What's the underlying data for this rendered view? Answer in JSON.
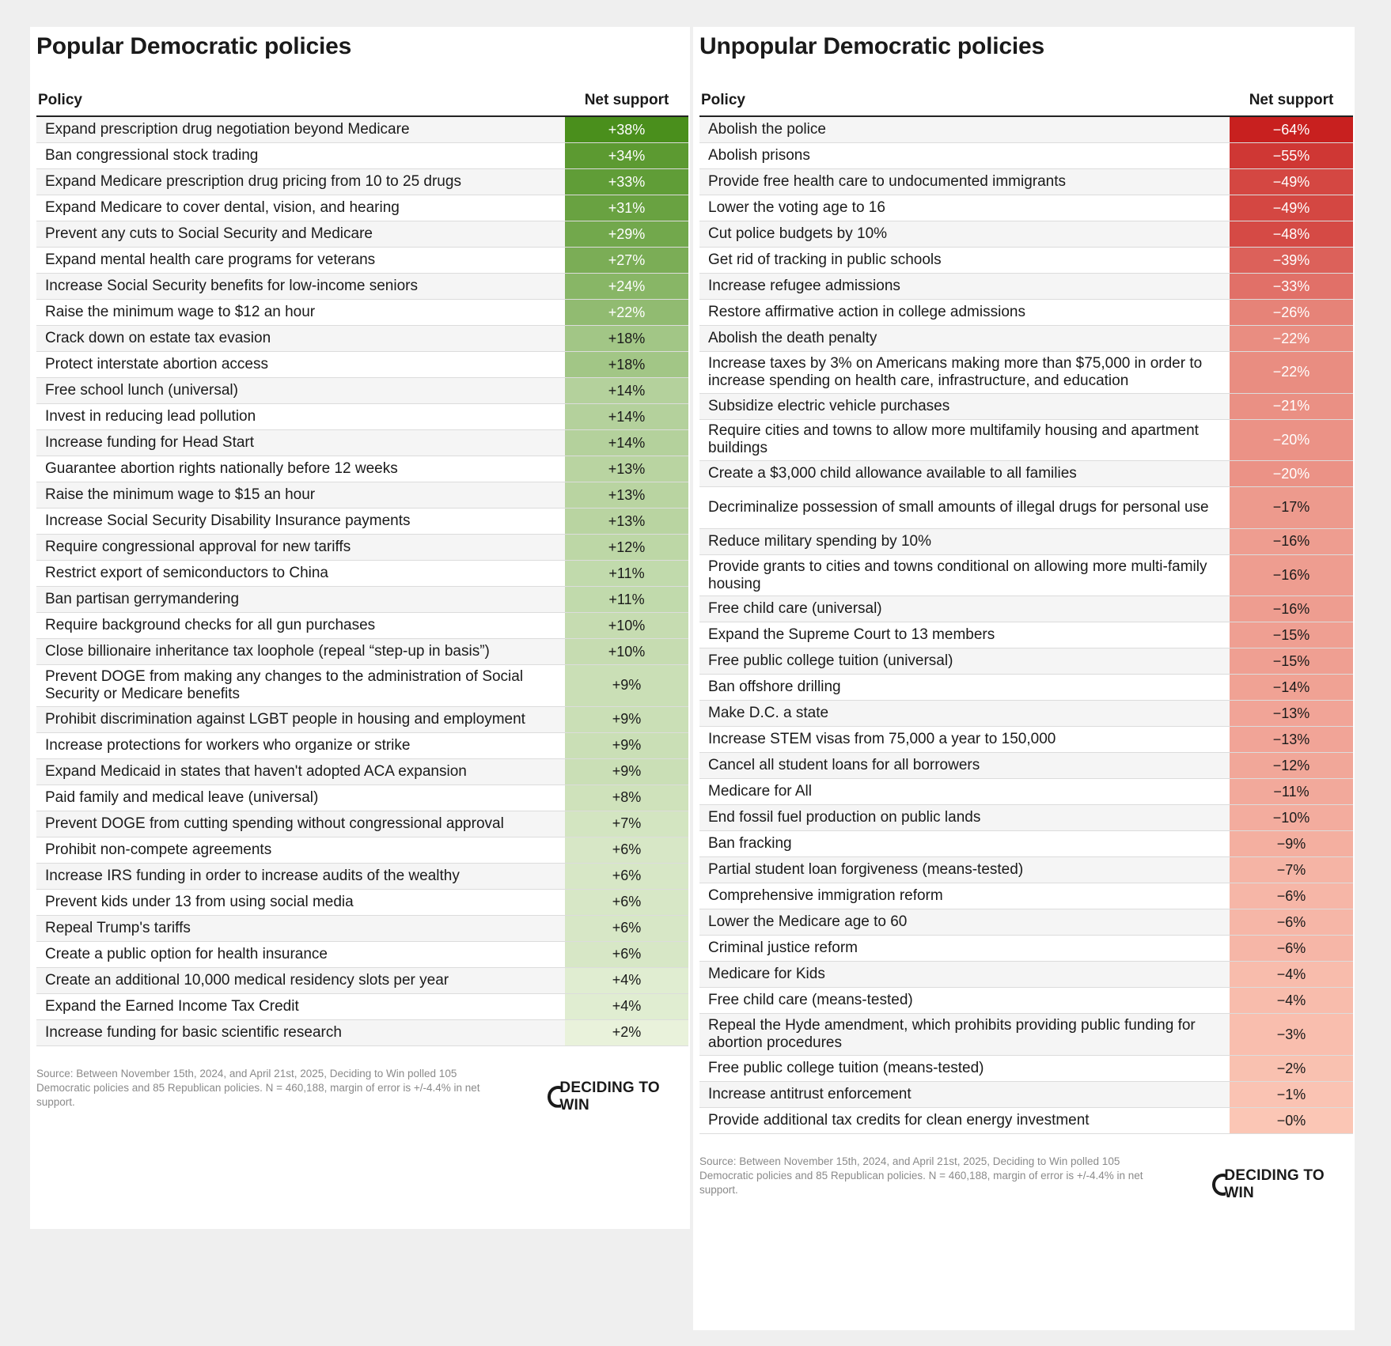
{
  "colors": {
    "positive_strongest": "#4a8f1c",
    "positive_weakest": "#f2f8e6",
    "negative_strongest": "#c8201f",
    "negative_weakest": "#fbc6b5"
  },
  "popular": {
    "title": "Popular Democratic policies",
    "header_policy": "Policy",
    "header_net": "Net support",
    "source": "Source: Between November 15th, 2024, and April 21st, 2025, Deciding to Win polled 105 Democratic policies and 85 Republican policies. N = 460,188, margin of error is +/-4.4% in net support.",
    "logo": "DECIDING TO WIN"
  },
  "unpopular": {
    "title": "Unpopular Democratic policies",
    "header_policy": "Policy",
    "header_net": "Net support",
    "source": "Source: Between November 15th, 2024, and April 21st, 2025, Deciding to Win polled 105 Democratic policies and 85 Republican policies. N = 460,188, margin of error is +/-4.4% in net support.",
    "logo": "DECIDING TO WIN"
  },
  "chart_data": [
    {
      "type": "table",
      "title": "Popular Democratic policies",
      "columns": [
        "Policy",
        "Net support"
      ],
      "rows": [
        {
          "policy": "Expand prescription drug negotiation beyond Medicare",
          "label": "+38%",
          "value": 38
        },
        {
          "policy": "Ban congressional stock trading",
          "label": "+34%",
          "value": 34
        },
        {
          "policy": "Expand Medicare prescription drug pricing from 10 to 25 drugs",
          "label": "+33%",
          "value": 33
        },
        {
          "policy": "Expand Medicare to cover dental, vision, and hearing",
          "label": "+31%",
          "value": 31
        },
        {
          "policy": "Prevent any cuts to Social Security and Medicare",
          "label": "+29%",
          "value": 29
        },
        {
          "policy": "Expand mental health care programs for veterans",
          "label": "+27%",
          "value": 27
        },
        {
          "policy": "Increase Social Security benefits for low-income seniors",
          "label": "+24%",
          "value": 24
        },
        {
          "policy": "Raise the minimum wage to $12 an hour",
          "label": "+22%",
          "value": 22
        },
        {
          "policy": "Crack down on estate tax evasion",
          "label": "+18%",
          "value": 18
        },
        {
          "policy": "Protect interstate abortion access",
          "label": "+18%",
          "value": 18
        },
        {
          "policy": "Free school lunch (universal)",
          "label": "+14%",
          "value": 14
        },
        {
          "policy": "Invest in reducing lead pollution",
          "label": "+14%",
          "value": 14
        },
        {
          "policy": "Increase funding for Head Start",
          "label": "+14%",
          "value": 14
        },
        {
          "policy": "Guarantee abortion rights nationally before 12 weeks",
          "label": "+13%",
          "value": 13
        },
        {
          "policy": "Raise the minimum wage to $15 an hour",
          "label": "+13%",
          "value": 13
        },
        {
          "policy": "Increase Social Security Disability Insurance payments",
          "label": "+13%",
          "value": 13
        },
        {
          "policy": "Require congressional approval for new tariffs",
          "label": "+12%",
          "value": 12
        },
        {
          "policy": "Restrict export of semiconductors to China",
          "label": "+11%",
          "value": 11
        },
        {
          "policy": "Ban partisan gerrymandering",
          "label": "+11%",
          "value": 11
        },
        {
          "policy": "Require background checks for all gun purchases",
          "label": "+10%",
          "value": 10
        },
        {
          "policy": "Close billionaire inheritance tax loophole (repeal “step-up in basis”)",
          "label": "+10%",
          "value": 10
        },
        {
          "policy": "Prevent DOGE from making any changes to the administration of Social Security or Medicare benefits",
          "label": "+9%",
          "value": 9,
          "tall": true
        },
        {
          "policy": "Prohibit discrimination against LGBT people in housing and employment",
          "label": "+9%",
          "value": 9
        },
        {
          "policy": "Increase protections for workers who organize or strike",
          "label": "+9%",
          "value": 9
        },
        {
          "policy": "Expand Medicaid in states that haven't adopted ACA expansion",
          "label": "+9%",
          "value": 9
        },
        {
          "policy": "Paid family and medical leave (universal)",
          "label": "+8%",
          "value": 8
        },
        {
          "policy": "Prevent DOGE from cutting spending without congressional approval",
          "label": "+7%",
          "value": 7
        },
        {
          "policy": "Prohibit non-compete agreements",
          "label": "+6%",
          "value": 6
        },
        {
          "policy": "Increase IRS funding in order to increase audits of the wealthy",
          "label": "+6%",
          "value": 6
        },
        {
          "policy": "Prevent kids under 13 from using social media",
          "label": "+6%",
          "value": 6
        },
        {
          "policy": "Repeal Trump's tariffs",
          "label": "+6%",
          "value": 6
        },
        {
          "policy": "Create a public option for health insurance",
          "label": "+6%",
          "value": 6
        },
        {
          "policy": "Create an additional 10,000 medical residency slots per year",
          "label": "+4%",
          "value": 4
        },
        {
          "policy": "Expand the Earned Income Tax Credit",
          "label": "+4%",
          "value": 4
        },
        {
          "policy": "Increase funding for basic scientific research",
          "label": "+2%",
          "value": 2
        }
      ]
    },
    {
      "type": "table",
      "title": "Unpopular Democratic policies",
      "columns": [
        "Policy",
        "Net support"
      ],
      "rows": [
        {
          "policy": "Abolish the police",
          "label": "−64%",
          "value": -64
        },
        {
          "policy": "Abolish prisons",
          "label": "−55%",
          "value": -55
        },
        {
          "policy": "Provide free health care to undocumented immigrants",
          "label": "−49%",
          "value": -49
        },
        {
          "policy": "Lower the voting age to 16",
          "label": "−49%",
          "value": -49
        },
        {
          "policy": "Cut police budgets by 10%",
          "label": "−48%",
          "value": -48
        },
        {
          "policy": "Get rid of tracking in public schools",
          "label": "−39%",
          "value": -39
        },
        {
          "policy": "Increase refugee admissions",
          "label": "−33%",
          "value": -33
        },
        {
          "policy": "Restore affirmative action in college admissions",
          "label": "−26%",
          "value": -26
        },
        {
          "policy": "Abolish the death penalty",
          "label": "−22%",
          "value": -22
        },
        {
          "policy": "Increase taxes by 3% on Americans making more than $75,000 in order to increase spending on health care, infrastructure, and education",
          "label": "−22%",
          "value": -22,
          "tall": true
        },
        {
          "policy": "Subsidize electric vehicle purchases",
          "label": "−21%",
          "value": -21
        },
        {
          "policy": "Require cities and towns to allow more multifamily housing and apartment buildings",
          "label": "−20%",
          "value": -20,
          "tall": true
        },
        {
          "policy": "Create a $3,000 child allowance available to all families",
          "label": "−20%",
          "value": -20
        },
        {
          "policy": "Decriminalize possession of small amounts of illegal drugs for personal use",
          "label": "−17%",
          "value": -17,
          "tall": true
        },
        {
          "policy": "Reduce military spending by 10%",
          "label": "−16%",
          "value": -16
        },
        {
          "policy": "Provide grants to cities and towns conditional on allowing more multi-family housing",
          "label": "−16%",
          "value": -16,
          "tall": true
        },
        {
          "policy": "Free child care (universal)",
          "label": "−16%",
          "value": -16
        },
        {
          "policy": "Expand the Supreme Court to 13 members",
          "label": "−15%",
          "value": -15
        },
        {
          "policy": "Free public college tuition (universal)",
          "label": "−15%",
          "value": -15
        },
        {
          "policy": "Ban offshore drilling",
          "label": "−14%",
          "value": -14
        },
        {
          "policy": "Make D.C. a state",
          "label": "−13%",
          "value": -13
        },
        {
          "policy": "Increase STEM visas from 75,000 a year to 150,000",
          "label": "−13%",
          "value": -13
        },
        {
          "policy": "Cancel all student loans for all borrowers",
          "label": "−12%",
          "value": -12
        },
        {
          "policy": "Medicare for All",
          "label": "−11%",
          "value": -11
        },
        {
          "policy": "End fossil fuel production on public lands",
          "label": "−10%",
          "value": -10
        },
        {
          "policy": "Ban fracking",
          "label": "−9%",
          "value": -9
        },
        {
          "policy": "Partial student loan forgiveness (means-tested)",
          "label": "−7%",
          "value": -7
        },
        {
          "policy": "Comprehensive immigration reform",
          "label": "−6%",
          "value": -6
        },
        {
          "policy": "Lower the Medicare age to 60",
          "label": "−6%",
          "value": -6
        },
        {
          "policy": "Criminal justice reform",
          "label": "−6%",
          "value": -6
        },
        {
          "policy": "Medicare for Kids",
          "label": "−4%",
          "value": -4
        },
        {
          "policy": "Free child care (means-tested)",
          "label": "−4%",
          "value": -4
        },
        {
          "policy": "Repeal the Hyde amendment, which prohibits providing public funding for abortion procedures",
          "label": "−3%",
          "value": -3,
          "tall": true
        },
        {
          "policy": "Free public college tuition (means-tested)",
          "label": "−2%",
          "value": -2
        },
        {
          "policy": "Increase antitrust enforcement",
          "label": "−1%",
          "value": -1
        },
        {
          "policy": "Provide additional tax credits for clean energy investment",
          "label": "−0%",
          "value": 0
        }
      ]
    }
  ]
}
